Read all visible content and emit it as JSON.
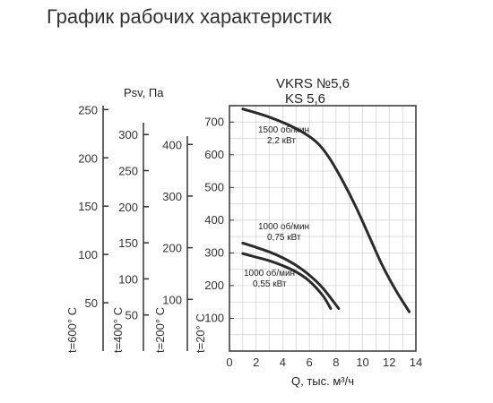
{
  "page": {
    "title": "График рабочих характеристик"
  },
  "chart_data": {
    "type": "line",
    "title": "VKRS №5,6",
    "subtitle": "KS 5,6",
    "xlabel": "Q, тыс. м³/ч",
    "ylabel": "Psv, Па",
    "x_ticks": [
      0,
      2,
      4,
      6,
      8,
      10,
      12,
      14
    ],
    "xlim": [
      0,
      14
    ],
    "y_axes": [
      {
        "id": "t20",
        "label": "t=20° C",
        "ticks": [
          100,
          200,
          300,
          400,
          500,
          600,
          700
        ],
        "ylim": [
          0,
          750
        ],
        "main": true
      },
      {
        "id": "t200",
        "label": "t=200° C",
        "ticks": [
          100,
          200,
          300,
          400
        ],
        "ylim": [
          0,
          475
        ]
      },
      {
        "id": "t400",
        "label": "t=400° C",
        "ticks": [
          50,
          100,
          150,
          200,
          250,
          300
        ],
        "ylim": [
          0,
          340
        ]
      },
      {
        "id": "t600",
        "label": "t=600° C",
        "ticks": [
          50,
          100,
          150,
          200,
          250
        ],
        "ylim": [
          0,
          254
        ]
      }
    ],
    "grid": true,
    "series": [
      {
        "name": "1500 об/мин",
        "power": "2,2 кВт",
        "x": [
          1,
          3,
          5,
          6.5,
          7.5,
          8.5,
          9.5,
          10.5,
          11.5,
          12.5,
          13.5
        ],
        "y": [
          740,
          715,
          680,
          640,
          590,
          520,
          440,
          350,
          260,
          185,
          120
        ]
      },
      {
        "name": "1000 об/мин",
        "power": "0,75 кВт",
        "x": [
          1,
          2,
          3,
          4,
          5,
          6,
          7,
          8.2
        ],
        "y": [
          330,
          317,
          303,
          285,
          262,
          232,
          193,
          130
        ]
      },
      {
        "name": "1000 об/мин",
        "power": "0,55 кВт",
        "x": [
          1,
          2,
          3,
          4,
          5,
          6,
          7,
          7.6
        ],
        "y": [
          298,
          287,
          276,
          261,
          242,
          214,
          170,
          130
        ]
      }
    ]
  }
}
